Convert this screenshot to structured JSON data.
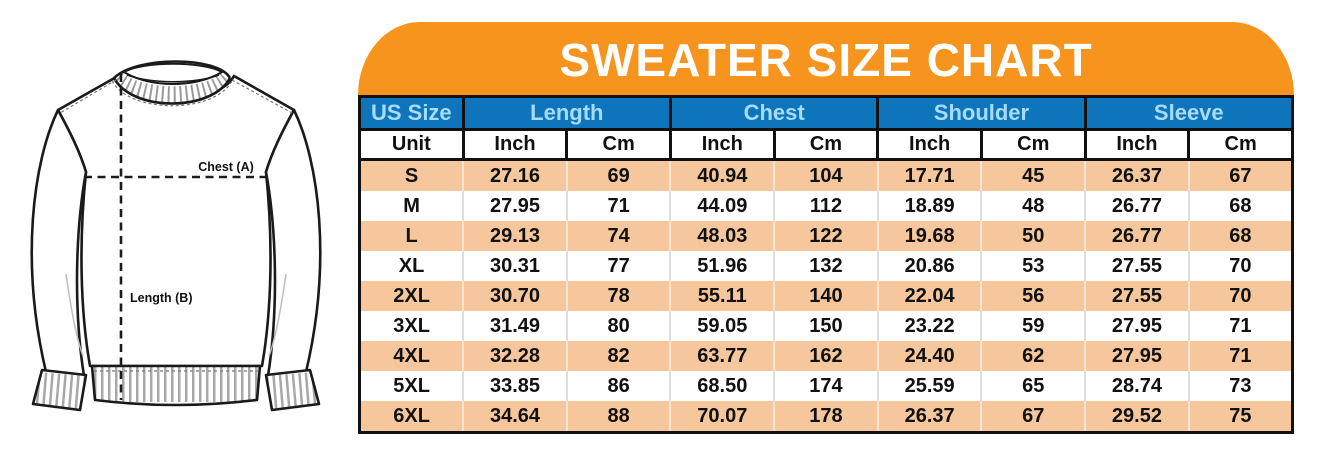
{
  "title": "SWEATER SIZE CHART",
  "illustration": {
    "name": "sweater-line-drawing",
    "chest_label": "Chest (A)",
    "length_label": "Length (B)"
  },
  "colors": {
    "banner_orange": "#F7941D",
    "header_blue": "#0E74BC",
    "header_text": "#A6DCF7",
    "stripe_peach": "#F6C79D",
    "text_black": "#111111"
  },
  "chart_data": {
    "type": "table",
    "title": "SWEATER SIZE CHART",
    "column_groups": [
      {
        "label": "US Size",
        "span": 1
      },
      {
        "label": "Length",
        "span": 2
      },
      {
        "label": "Chest",
        "span": 2
      },
      {
        "label": "Shoulder",
        "span": 2
      },
      {
        "label": "Sleeve",
        "span": 2
      }
    ],
    "unit_row": [
      "Unit",
      "Inch",
      "Cm",
      "Inch",
      "Cm",
      "Inch",
      "Cm",
      "Inch",
      "Cm"
    ],
    "rows": [
      [
        "S",
        "27.16",
        "69",
        "40.94",
        "104",
        "17.71",
        "45",
        "26.37",
        "67"
      ],
      [
        "M",
        "27.95",
        "71",
        "44.09",
        "112",
        "18.89",
        "48",
        "26.77",
        "68"
      ],
      [
        "L",
        "29.13",
        "74",
        "48.03",
        "122",
        "19.68",
        "50",
        "26.77",
        "68"
      ],
      [
        "XL",
        "30.31",
        "77",
        "51.96",
        "132",
        "20.86",
        "53",
        "27.55",
        "70"
      ],
      [
        "2XL",
        "30.70",
        "78",
        "55.11",
        "140",
        "22.04",
        "56",
        "27.55",
        "70"
      ],
      [
        "3XL",
        "31.49",
        "80",
        "59.05",
        "150",
        "23.22",
        "59",
        "27.95",
        "71"
      ],
      [
        "4XL",
        "32.28",
        "82",
        "63.77",
        "162",
        "24.40",
        "62",
        "27.95",
        "71"
      ],
      [
        "5XL",
        "33.85",
        "86",
        "68.50",
        "174",
        "25.59",
        "65",
        "28.74",
        "73"
      ],
      [
        "6XL",
        "34.64",
        "88",
        "70.07",
        "178",
        "26.37",
        "67",
        "29.52",
        "75"
      ]
    ]
  }
}
